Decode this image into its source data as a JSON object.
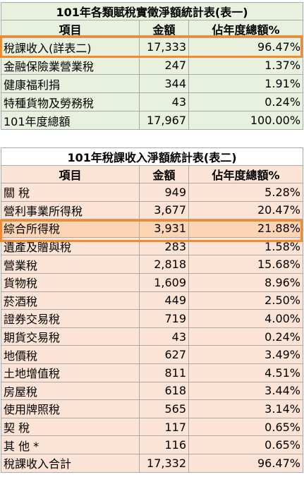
{
  "table1": {
    "title": "101年各類賦稅實徵淨額統計表(表一)",
    "headers": [
      "項目",
      "金額",
      "佔年度總額%"
    ],
    "rows": [
      [
        "稅課收入(詳表二)",
        "17,333",
        "96.47%"
      ],
      [
        "金融保險業營業稅",
        "247",
        "1.37%"
      ],
      [
        "健康福利捐",
        "344",
        "1.91%"
      ],
      [
        "特種貨物及勞務稅",
        "43",
        "0.24%"
      ],
      [
        "101年度總額",
        "17,967",
        "100.00%"
      ]
    ]
  },
  "table2": {
    "title": "101年稅課收入淨額統計表(表二)",
    "headers": [
      "項目",
      "金額",
      "佔年度總額%"
    ],
    "rows": [
      [
        "關 稅",
        "949",
        "5.28%"
      ],
      [
        "營利事業所得稅",
        "3,677",
        "20.47%"
      ],
      [
        "綜合所得稅",
        "3,931",
        "21.88%"
      ],
      [
        "遺產及贈與稅",
        "283",
        "1.58%"
      ],
      [
        "營業稅",
        "2,818",
        "15.68%"
      ],
      [
        "貨物稅",
        "1,609",
        "8.96%"
      ],
      [
        "菸酒稅",
        "449",
        "2.50%"
      ],
      [
        "證券交易稅",
        "719",
        "4.00%"
      ],
      [
        "期貨交易稅",
        "43",
        "0.24%"
      ],
      [
        "地價稅",
        "627",
        "3.49%"
      ],
      [
        "土地增值稅",
        "811",
        "4.51%"
      ],
      [
        "房屋稅",
        "618",
        "3.44%"
      ],
      [
        "使用牌照稅",
        "565",
        "3.14%"
      ],
      [
        "契 稅",
        "117",
        "0.65%"
      ],
      [
        "其 他 *",
        "116",
        "0.65%"
      ],
      [
        "稅課收入合計",
        "17,332",
        "96.47%"
      ]
    ]
  },
  "colors": {
    "table1_bg": "#e8f0de",
    "table2_bg": "#fbe4d5",
    "highlight_row": "#fcd5b4",
    "highlight_border": "#f58a2c",
    "grid": "#a9a9a9"
  }
}
